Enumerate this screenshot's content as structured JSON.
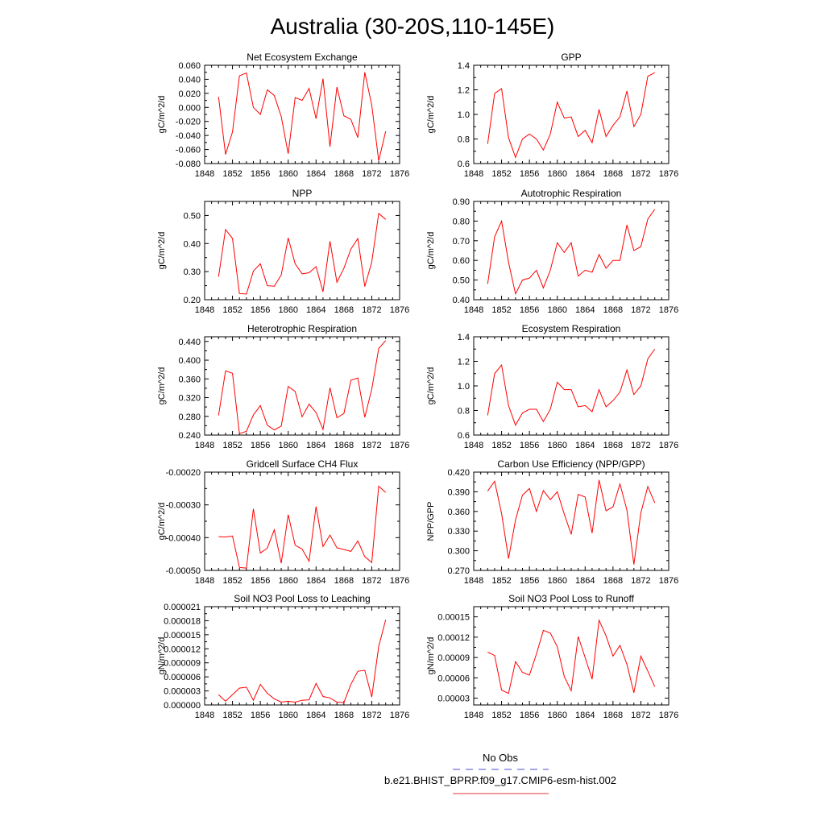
{
  "title": "Australia (30-20S,110-145E)",
  "legend": {
    "entries": [
      {
        "label": "No Obs",
        "color": "#4b4bcf",
        "dash": true
      },
      {
        "label": "b.e21.BHIST_BPRP.f09_g17.CMIP6-esm-hist.002",
        "color": "#e8353a",
        "dash": false
      }
    ]
  },
  "colors": {
    "series": "#ff0000",
    "axis": "#000000"
  },
  "chart_data": [
    {
      "type": "line",
      "title": "Net Ecosystem Exchange",
      "ylabel": "gC/m^2/d",
      "xlim": [
        1848,
        1876
      ],
      "xticks": [
        "1848",
        "1852",
        "1856",
        "1860",
        "1864",
        "1868",
        "1872",
        "1876"
      ],
      "ylim": [
        -0.08,
        0.06
      ],
      "yticks": [
        "-0.080",
        "-0.060",
        "-0.040",
        "-0.020",
        "0.000",
        "0.020",
        "0.040",
        "0.060"
      ],
      "x": [
        1850,
        1851,
        1852,
        1853,
        1854,
        1855,
        1856,
        1857,
        1858,
        1859,
        1860,
        1861,
        1862,
        1863,
        1864,
        1865,
        1866,
        1867,
        1868,
        1869,
        1870,
        1871,
        1872,
        1873,
        1874
      ],
      "series": [
        {
          "values": [
            0.015,
            -0.067,
            -0.035,
            0.045,
            0.049,
            0.0,
            -0.01,
            0.025,
            0.017,
            -0.013,
            -0.066,
            0.014,
            0.01,
            0.027,
            -0.016,
            0.041,
            -0.056,
            0.029,
            -0.012,
            -0.017,
            -0.043,
            0.05,
            0.003,
            -0.076,
            -0.034
          ]
        }
      ]
    },
    {
      "type": "line",
      "title": "GPP",
      "ylabel": "gC/m^2/d",
      "xlim": [
        1848,
        1876
      ],
      "xticks": [
        "1848",
        "1852",
        "1856",
        "1860",
        "1864",
        "1868",
        "1872",
        "1876"
      ],
      "ylim": [
        0.6,
        1.4
      ],
      "yticks": [
        "0.6",
        "0.8",
        "1.0",
        "1.2",
        "1.4"
      ],
      "x": [
        1850,
        1851,
        1852,
        1853,
        1854,
        1855,
        1856,
        1857,
        1858,
        1859,
        1860,
        1861,
        1862,
        1863,
        1864,
        1865,
        1866,
        1867,
        1868,
        1869,
        1870,
        1871,
        1872,
        1873,
        1874
      ],
      "series": [
        {
          "values": [
            0.76,
            1.17,
            1.21,
            0.81,
            0.65,
            0.8,
            0.84,
            0.8,
            0.71,
            0.84,
            1.1,
            0.97,
            0.98,
            0.82,
            0.87,
            0.77,
            1.04,
            0.82,
            0.91,
            0.98,
            1.19,
            0.9,
            1.0,
            1.31,
            1.34
          ]
        }
      ]
    },
    {
      "type": "line",
      "title": "NPP",
      "ylabel": "gC/m^2/d",
      "xlim": [
        1848,
        1876
      ],
      "xticks": [
        "1848",
        "1852",
        "1856",
        "1860",
        "1864",
        "1868",
        "1872",
        "1876"
      ],
      "ylim": [
        0.2,
        0.55
      ],
      "yticks": [
        "0.20",
        "0.30",
        "0.40",
        "0.50"
      ],
      "x": [
        1850,
        1851,
        1852,
        1853,
        1854,
        1855,
        1856,
        1857,
        1858,
        1859,
        1860,
        1861,
        1862,
        1863,
        1864,
        1865,
        1866,
        1867,
        1868,
        1869,
        1870,
        1871,
        1872,
        1873,
        1874
      ],
      "series": [
        {
          "values": [
            0.282,
            0.45,
            0.418,
            0.222,
            0.22,
            0.302,
            0.328,
            0.25,
            0.248,
            0.288,
            0.42,
            0.328,
            0.292,
            0.296,
            0.318,
            0.228,
            0.408,
            0.262,
            0.312,
            0.38,
            0.418,
            0.247,
            0.334,
            0.507,
            0.486
          ]
        }
      ]
    },
    {
      "type": "line",
      "title": "Autotrophic Respiration",
      "ylabel": "gC/m^2/d",
      "xlim": [
        1848,
        1876
      ],
      "xticks": [
        "1848",
        "1852",
        "1856",
        "1860",
        "1864",
        "1868",
        "1872",
        "1876"
      ],
      "ylim": [
        0.4,
        0.9
      ],
      "yticks": [
        "0.40",
        "0.50",
        "0.60",
        "0.70",
        "0.80",
        "0.90"
      ],
      "x": [
        1850,
        1851,
        1852,
        1853,
        1854,
        1855,
        1856,
        1857,
        1858,
        1859,
        1860,
        1861,
        1862,
        1863,
        1864,
        1865,
        1866,
        1867,
        1868,
        1869,
        1870,
        1871,
        1872,
        1873,
        1874
      ],
      "series": [
        {
          "values": [
            0.48,
            0.72,
            0.8,
            0.59,
            0.43,
            0.5,
            0.51,
            0.55,
            0.46,
            0.55,
            0.69,
            0.64,
            0.69,
            0.52,
            0.55,
            0.54,
            0.63,
            0.56,
            0.6,
            0.6,
            0.78,
            0.65,
            0.67,
            0.81,
            0.86
          ]
        }
      ]
    },
    {
      "type": "line",
      "title": "Heterotrophic Respiration",
      "ylabel": "gC/m^2/d",
      "xlim": [
        1848,
        1876
      ],
      "xticks": [
        "1848",
        "1852",
        "1856",
        "1860",
        "1864",
        "1868",
        "1872",
        "1876"
      ],
      "ylim": [
        0.24,
        0.45
      ],
      "yticks": [
        "0.240",
        "0.280",
        "0.320",
        "0.360",
        "0.400",
        "0.440"
      ],
      "x": [
        1850,
        1851,
        1852,
        1853,
        1854,
        1855,
        1856,
        1857,
        1858,
        1859,
        1860,
        1861,
        1862,
        1863,
        1864,
        1865,
        1866,
        1867,
        1868,
        1869,
        1870,
        1871,
        1872,
        1873,
        1874
      ],
      "series": [
        {
          "values": [
            0.282,
            0.377,
            0.372,
            0.243,
            0.248,
            0.283,
            0.303,
            0.261,
            0.251,
            0.259,
            0.344,
            0.333,
            0.279,
            0.306,
            0.288,
            0.252,
            0.341,
            0.277,
            0.286,
            0.357,
            0.362,
            0.278,
            0.338,
            0.425,
            0.442
          ]
        }
      ]
    },
    {
      "type": "line",
      "title": "Ecosystem Respiration",
      "ylabel": "gC/m^2/d",
      "xlim": [
        1848,
        1876
      ],
      "xticks": [
        "1848",
        "1852",
        "1856",
        "1860",
        "1864",
        "1868",
        "1872",
        "1876"
      ],
      "ylim": [
        0.6,
        1.4
      ],
      "yticks": [
        "0.6",
        "0.8",
        "1.0",
        "1.2",
        "1.4"
      ],
      "x": [
        1850,
        1851,
        1852,
        1853,
        1854,
        1855,
        1856,
        1857,
        1858,
        1859,
        1860,
        1861,
        1862,
        1863,
        1864,
        1865,
        1866,
        1867,
        1868,
        1869,
        1870,
        1871,
        1872,
        1873,
        1874
      ],
      "series": [
        {
          "values": [
            0.76,
            1.1,
            1.17,
            0.84,
            0.68,
            0.78,
            0.81,
            0.81,
            0.71,
            0.81,
            1.03,
            0.97,
            0.97,
            0.83,
            0.84,
            0.79,
            0.97,
            0.83,
            0.88,
            0.95,
            1.13,
            0.93,
            1.0,
            1.22,
            1.3
          ]
        }
      ]
    },
    {
      "type": "line",
      "title": "Gridcell Surface CH4 Flux",
      "ylabel": "gC/m^2/d",
      "xlim": [
        1848,
        1876
      ],
      "xticks": [
        "1848",
        "1852",
        "1856",
        "1860",
        "1864",
        "1868",
        "1872",
        "1876"
      ],
      "ylim": [
        -0.0005,
        -0.0002
      ],
      "yticks": [
        "-0.00050",
        "-0.00040",
        "-0.00030",
        "-0.00020"
      ],
      "x": [
        1850,
        1851,
        1852,
        1853,
        1854,
        1855,
        1856,
        1857,
        1858,
        1859,
        1860,
        1861,
        1862,
        1863,
        1864,
        1865,
        1866,
        1867,
        1868,
        1869,
        1870,
        1871,
        1872,
        1873,
        1874
      ],
      "series": [
        {
          "values": [
            -0.000397,
            -0.000398,
            -0.000395,
            -0.000491,
            -0.000493,
            -0.000312,
            -0.000447,
            -0.000432,
            -0.000376,
            -0.000478,
            -0.00033,
            -0.000423,
            -0.000435,
            -0.000472,
            -0.000305,
            -0.000427,
            -0.000392,
            -0.000431,
            -0.000436,
            -0.000442,
            -0.00041,
            -0.000458,
            -0.000476,
            -0.000243,
            -0.000262
          ]
        }
      ]
    },
    {
      "type": "line",
      "title": "Carbon Use Efficiency (NPP/GPP)",
      "ylabel": "NPP/GPP",
      "xlim": [
        1848,
        1876
      ],
      "xticks": [
        "1848",
        "1852",
        "1856",
        "1860",
        "1864",
        "1868",
        "1872",
        "1876"
      ],
      "ylim": [
        0.27,
        0.42
      ],
      "yticks": [
        "0.270",
        "0.300",
        "0.330",
        "0.360",
        "0.390",
        "0.420"
      ],
      "x": [
        1850,
        1851,
        1852,
        1853,
        1854,
        1855,
        1856,
        1857,
        1858,
        1859,
        1860,
        1861,
        1862,
        1863,
        1864,
        1865,
        1866,
        1867,
        1868,
        1869,
        1870,
        1871,
        1872,
        1873,
        1874
      ],
      "series": [
        {
          "values": [
            0.391,
            0.406,
            0.357,
            0.288,
            0.347,
            0.385,
            0.395,
            0.36,
            0.392,
            0.378,
            0.39,
            0.356,
            0.325,
            0.386,
            0.382,
            0.327,
            0.408,
            0.361,
            0.367,
            0.402,
            0.362,
            0.279,
            0.358,
            0.398,
            0.373
          ]
        }
      ]
    },
    {
      "type": "line",
      "title": "Soil NO3 Pool Loss to Leaching",
      "ylabel": "gN/m^2/d",
      "xlim": [
        1848,
        1876
      ],
      "xticks": [
        "1848",
        "1852",
        "1856",
        "1860",
        "1864",
        "1868",
        "1872",
        "1876"
      ],
      "ylim": [
        0,
        2.1e-05
      ],
      "yticks": [
        "0.000000",
        "0.000003",
        "0.000006",
        "0.000009",
        "0.000012",
        "0.000015",
        "0.000018",
        "0.000021"
      ],
      "x": [
        1850,
        1851,
        1852,
        1853,
        1854,
        1855,
        1856,
        1857,
        1858,
        1859,
        1860,
        1861,
        1862,
        1863,
        1864,
        1865,
        1866,
        1867,
        1868,
        1869,
        1870,
        1871,
        1872,
        1873,
        1874
      ],
      "series": [
        {
          "values": [
            2.2e-06,
            8e-07,
            2.2e-06,
            3.6e-06,
            3.8e-06,
            1e-06,
            4.4e-06,
            2.5e-06,
            1.3e-06,
            6e-07,
            8e-07,
            6e-07,
            1e-06,
            1.1e-06,
            4.6e-06,
            1.8e-06,
            1.5e-06,
            6e-07,
            5e-07,
            4.4e-06,
            7.2e-06,
            7.4e-06,
            1.7e-06,
            1.25e-05,
            1.82e-05
          ]
        }
      ]
    },
    {
      "type": "line",
      "title": "Soil NO3 Pool Loss to Runoff",
      "ylabel": "gN/m^2/d",
      "xlim": [
        1848,
        1876
      ],
      "xticks": [
        "1848",
        "1852",
        "1856",
        "1860",
        "1864",
        "1868",
        "1872",
        "1876"
      ],
      "ylim": [
        2e-05,
        0.000165
      ],
      "yticks": [
        "0.00003",
        "0.00006",
        "0.00009",
        "0.00012",
        "0.00015"
      ],
      "x": [
        1850,
        1851,
        1852,
        1853,
        1854,
        1855,
        1856,
        1857,
        1858,
        1859,
        1860,
        1861,
        1862,
        1863,
        1864,
        1865,
        1866,
        1867,
        1868,
        1869,
        1870,
        1871,
        1872,
        1873,
        1874
      ],
      "series": [
        {
          "values": [
            9.8e-05,
            9.3e-05,
            4.2e-05,
            3.7e-05,
            8.4e-05,
            6.8e-05,
            6.4e-05,
            9.5e-05,
            0.00013,
            0.000126,
            0.000106,
            6.2e-05,
            4.1e-05,
            0.000121,
            9e-05,
            5.8e-05,
            0.000145,
            0.000122,
            9.2e-05,
            0.000108,
            8e-05,
            3.8e-05,
            9.2e-05,
            7e-05,
            4.7e-05
          ]
        }
      ]
    }
  ]
}
